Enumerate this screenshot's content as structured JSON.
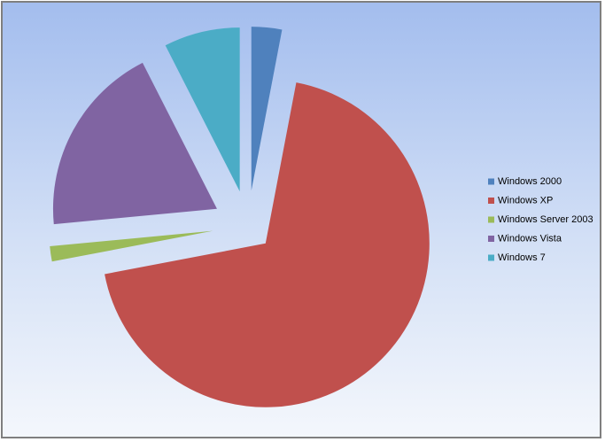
{
  "chart_data": {
    "type": "pie",
    "categories": [
      "Windows 2000",
      "Windows XP",
      "Windows Server 2003",
      "Windows Vista",
      "Windows 7"
    ],
    "values": [
      3,
      69,
      1.5,
      19,
      7.5
    ],
    "colors": [
      "#4f81bd",
      "#c0504d",
      "#9bbb59",
      "#8064a2",
      "#4bacc6"
    ],
    "legend": "right"
  }
}
